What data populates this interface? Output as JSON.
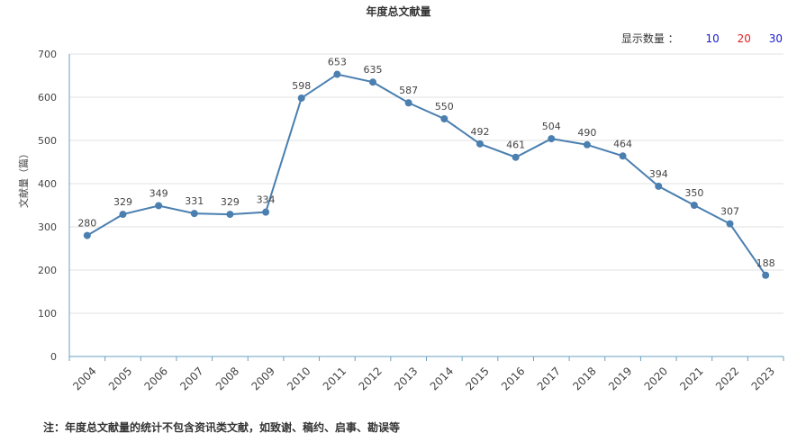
{
  "title": "年度总文献量",
  "display_count": {
    "label": "显示数量 ：",
    "options": [
      {
        "label": "10",
        "color": "#1a1acc"
      },
      {
        "label": "20",
        "color": "#e02020"
      },
      {
        "label": "30",
        "color": "#1a1acc"
      }
    ]
  },
  "footnote": "注：年度总文献量的统计不包含资讯类文献，如致谢、稿约、启事、勘误等",
  "colors": {
    "line": "#4a7fb0",
    "axis": "#6aa0c0",
    "grid": "#e0e0e0"
  },
  "chart_data": {
    "type": "line",
    "title": "年度总文献量",
    "xlabel": "",
    "ylabel": "文献量（篇）",
    "ylim": [
      0,
      700
    ],
    "yticks": [
      0,
      100,
      200,
      300,
      400,
      500,
      600,
      700
    ],
    "grid": true,
    "categories": [
      "2004",
      "2005",
      "2006",
      "2007",
      "2008",
      "2009",
      "2010",
      "2011",
      "2012",
      "2013",
      "2014",
      "2015",
      "2016",
      "2017",
      "2018",
      "2019",
      "2020",
      "2021",
      "2022",
      "2023"
    ],
    "series": [
      {
        "values": [
          280,
          329,
          349,
          331,
          329,
          334,
          598,
          653,
          635,
          587,
          550,
          492,
          461,
          504,
          490,
          464,
          394,
          350,
          307,
          188
        ]
      }
    ]
  }
}
